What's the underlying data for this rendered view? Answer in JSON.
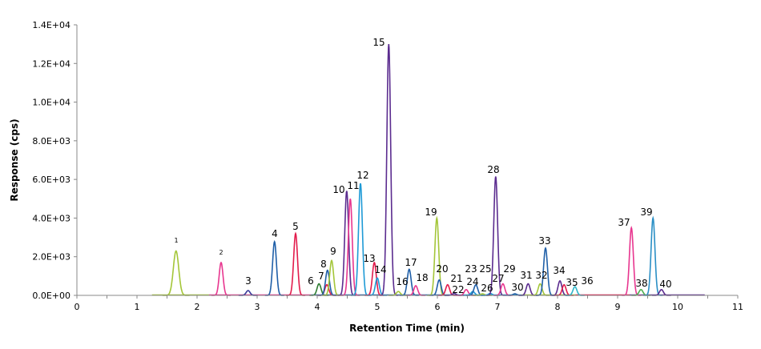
{
  "chart_data": {
    "type": "line",
    "title": "",
    "xlabel": "Retention Time (min)",
    "ylabel": "Response (cps)",
    "xlim": [
      0,
      11
    ],
    "ylim": [
      0,
      14000
    ],
    "x_ticks": [
      "0",
      "1",
      "2",
      "3",
      "4",
      "5",
      "6",
      "7",
      "8",
      "9",
      "10",
      "11"
    ],
    "y_ticks": [
      "0.0E+00",
      "2.0E+03",
      "4.0E+03",
      "6.0E+03",
      "8.0E+03",
      "1.0E+04",
      "1.2E+04",
      "1.4E+04"
    ],
    "grid": false,
    "legend": "none",
    "peaks": [
      {
        "label": "1",
        "rt": 1.65,
        "height": 2300,
        "color": "#a4c639"
      },
      {
        "label": "2",
        "rt": 2.4,
        "height": 1700,
        "color": "#e8368f"
      },
      {
        "label": "3",
        "rt": 2.85,
        "height": 250,
        "color": "#3a3a9a"
      },
      {
        "label": "4",
        "rt": 3.29,
        "height": 2780,
        "color": "#1f5fa8"
      },
      {
        "label": "5",
        "rt": 3.64,
        "height": 3200,
        "color": "#e31b4c"
      },
      {
        "label": "6",
        "rt": 4.03,
        "height": 600,
        "color": "#2e7d32"
      },
      {
        "label": "7",
        "rt": 4.16,
        "height": 550,
        "color": "#e31b4c"
      },
      {
        "label": "8",
        "rt": 4.17,
        "height": 1300,
        "color": "#1f5fa8"
      },
      {
        "label": "9",
        "rt": 4.24,
        "height": 1800,
        "color": "#a4c639"
      },
      {
        "label": "10",
        "rt": 4.49,
        "height": 5400,
        "color": "#5b2c8f"
      },
      {
        "label": "11",
        "rt": 4.55,
        "height": 5000,
        "color": "#e8368f"
      },
      {
        "label": "12",
        "rt": 4.72,
        "height": 5800,
        "color": "#1e9ad6"
      },
      {
        "label": "13",
        "rt": 4.95,
        "height": 1700,
        "color": "#e31b4c"
      },
      {
        "label": "14",
        "rt": 5.0,
        "height": 900,
        "color": "#1e9ad6"
      },
      {
        "label": "15",
        "rt": 5.19,
        "height": 13000,
        "color": "#5b2c8f"
      },
      {
        "label": "16",
        "rt": 5.35,
        "height": 200,
        "color": "#a4c639"
      },
      {
        "label": "17",
        "rt": 5.53,
        "height": 1350,
        "color": "#1f5fa8"
      },
      {
        "label": "18",
        "rt": 5.64,
        "height": 500,
        "color": "#e8368f"
      },
      {
        "label": "19",
        "rt": 5.99,
        "height": 4000,
        "color": "#a4c639"
      },
      {
        "label": "20",
        "rt": 6.03,
        "height": 800,
        "color": "#1f5fa8"
      },
      {
        "label": "21",
        "rt": 6.17,
        "height": 550,
        "color": "#e31b4c"
      },
      {
        "label": "22",
        "rt": 6.28,
        "height": 100,
        "color": "#5b2c8f"
      },
      {
        "label": "23",
        "rt": 6.48,
        "height": 300,
        "color": "#e8368f"
      },
      {
        "label": "24",
        "rt": 6.59,
        "height": 200,
        "color": "#1e9ad6"
      },
      {
        "label": "25",
        "rt": 6.64,
        "height": 550,
        "color": "#1f5fa8"
      },
      {
        "label": "26",
        "rt": 6.75,
        "height": 80,
        "color": "#a4c639"
      },
      {
        "label": "27",
        "rt": 6.88,
        "height": 100,
        "color": "#1e9ad6"
      },
      {
        "label": "28",
        "rt": 6.97,
        "height": 6150,
        "color": "#5b2c8f"
      },
      {
        "label": "29",
        "rt": 7.09,
        "height": 600,
        "color": "#e8368f"
      },
      {
        "label": "30",
        "rt": 7.29,
        "height": 80,
        "color": "#1f5fa8"
      },
      {
        "label": "31",
        "rt": 7.51,
        "height": 600,
        "color": "#5b2c8f"
      },
      {
        "label": "32",
        "rt": 7.71,
        "height": 600,
        "color": "#a4c639"
      },
      {
        "label": "33",
        "rt": 7.8,
        "height": 2450,
        "color": "#1f5fa8"
      },
      {
        "label": "34",
        "rt": 8.04,
        "height": 750,
        "color": "#5b2c8f"
      },
      {
        "label": "35",
        "rt": 8.11,
        "height": 550,
        "color": "#e31b4c"
      },
      {
        "label": "36",
        "rt": 8.29,
        "height": 450,
        "color": "#2cb5c8"
      },
      {
        "label": "37",
        "rt": 9.23,
        "height": 3500,
        "color": "#e8368f"
      },
      {
        "label": "38",
        "rt": 9.39,
        "height": 300,
        "color": "#4caf50"
      },
      {
        "label": "39",
        "rt": 9.59,
        "height": 4000,
        "color": "#2a8fc5"
      },
      {
        "label": "40",
        "rt": 9.73,
        "height": 300,
        "color": "#5b2c8f"
      }
    ]
  }
}
